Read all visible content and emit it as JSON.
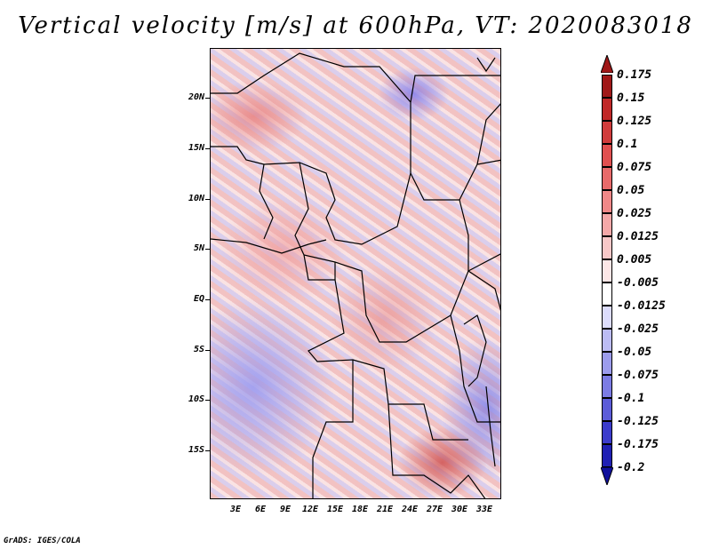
{
  "title": "Vertical velocity [m/s] at 600hPa, VT: 2020083018",
  "credit": "GrADS: IGES/COLA",
  "y_axis": {
    "labels": [
      "20N",
      "15N",
      "10N",
      "5N",
      "EQ",
      "5S",
      "10S",
      "15S"
    ],
    "lat_values": [
      20,
      15,
      10,
      5,
      0,
      -5,
      -10,
      -15
    ],
    "lat_range": [
      -20,
      25
    ]
  },
  "x_axis": {
    "labels": [
      "3E",
      "6E",
      "9E",
      "12E",
      "15E",
      "18E",
      "21E",
      "24E",
      "27E",
      "30E",
      "33E"
    ],
    "lon_values": [
      3,
      6,
      9,
      12,
      15,
      18,
      21,
      24,
      27,
      30,
      33
    ],
    "lon_range": [
      0,
      35
    ]
  },
  "colorbar": {
    "labels": [
      "0.175",
      "0.15",
      "0.125",
      "0.1",
      "0.075",
      "0.05",
      "0.025",
      "0.0125",
      "0.005",
      "-0.005",
      "-0.0125",
      "-0.025",
      "-0.05",
      "-0.075",
      "-0.1",
      "-0.125",
      "-0.175",
      "-0.2"
    ],
    "colors": [
      "#a01818",
      "#c02828",
      "#d03c3c",
      "#e05050",
      "#e86a6a",
      "#f08888",
      "#f4a8a8",
      "#f8c8c8",
      "#fce6e6",
      "#ffffff",
      "#dcdcfc",
      "#bcbcf4",
      "#9c9cec",
      "#7c7ce4",
      "#5c5cd8",
      "#3c3ccc",
      "#2020b4",
      "#10109c"
    ],
    "top_arrow_color": "#a01818",
    "bottom_arrow_color": "#10109c"
  }
}
